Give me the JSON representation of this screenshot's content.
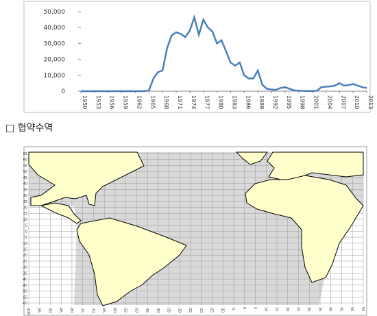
{
  "chart_data": {
    "type": "line",
    "x": [
      1950,
      1951,
      1952,
      1953,
      1954,
      1955,
      1956,
      1957,
      1958,
      1959,
      1960,
      1961,
      1962,
      1963,
      1964,
      1965,
      1966,
      1967,
      1968,
      1969,
      1970,
      1971,
      1972,
      1973,
      1974,
      1975,
      1976,
      1977,
      1978,
      1979,
      1980,
      1981,
      1982,
      1983,
      1984,
      1985,
      1986,
      1987,
      1988,
      1989,
      1990,
      1991,
      1992,
      1993,
      1994,
      1995,
      1996,
      1997,
      1998,
      1999,
      2000,
      2001,
      2002,
      2003,
      2004,
      2005,
      2006,
      2007,
      2008,
      2009,
      2010,
      2011,
      2012,
      2013
    ],
    "series": [
      {
        "color": "#4a7ebb",
        "values": [
          0,
          0,
          0,
          0,
          0,
          0,
          0,
          0,
          0,
          0,
          0,
          0,
          0,
          0,
          0,
          500,
          8000,
          12000,
          13000,
          27000,
          35000,
          37000,
          36000,
          34000,
          38000,
          46500,
          35500,
          45000,
          40000,
          37500,
          30000,
          32000,
          25000,
          18000,
          16000,
          18000,
          10000,
          8000,
          8000,
          13000,
          4000,
          1500,
          1000,
          800,
          2000,
          2500,
          1500,
          500,
          300,
          200,
          100,
          100,
          200,
          2500,
          2800,
          3000,
          3500,
          5000,
          3500,
          3800,
          4500,
          3500,
          2500,
          2000
        ]
      }
    ],
    "xlim": [
      1950,
      2013
    ],
    "xticks": [
      1950,
      1953,
      1956,
      1959,
      1962,
      1965,
      1968,
      1971,
      1974,
      1977,
      1980,
      1983,
      1986,
      1989,
      1992,
      1995,
      1998,
      2001,
      2004,
      2007,
      2010,
      2013
    ],
    "ylim": [
      0,
      50000
    ],
    "yticks": [
      0,
      {
        "value": 10000,
        "label": "10,000"
      },
      {
        "value": 20000,
        "label": "20,000"
      },
      {
        "value": 30000,
        "label": "30,000"
      },
      {
        "value": 40000,
        "label": "40,000"
      },
      {
        "value": 50000,
        "label": "50,000"
      }
    ]
  },
  "heading": "□ 협약수역",
  "map": {
    "lat_ticks": [
      65,
      60,
      55,
      50,
      45,
      40,
      35,
      30,
      25,
      20,
      15,
      10,
      5,
      0,
      -5,
      -10,
      -15,
      -20,
      -25,
      -30,
      -35,
      -40,
      -45,
      -50,
      -55,
      -60
    ],
    "lon_ticks": [
      -100,
      -95,
      -90,
      -85,
      -80,
      -75,
      -70,
      -65,
      -60,
      -55,
      -50,
      -45,
      -40,
      -35,
      -30,
      -25,
      -20,
      -15,
      -10,
      -5,
      0,
      5,
      10,
      15,
      20,
      25,
      30,
      35,
      40,
      45,
      50,
      55
    ]
  }
}
